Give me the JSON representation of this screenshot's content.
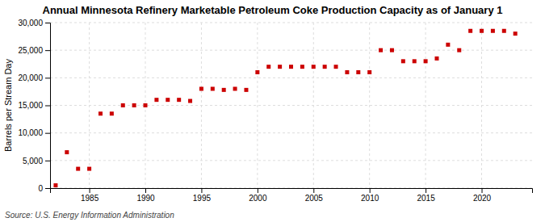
{
  "chart_data": {
    "type": "scatter",
    "title": "Annual Minnesota Refinery Marketable Petroleum Coke Production Capacity as of January 1",
    "ylabel": "Barrels per Stream Day",
    "source": "Source: U.S. Energy Information Administration",
    "x": [
      1982,
      1983,
      1984,
      1985,
      1986,
      1987,
      1988,
      1989,
      1990,
      1991,
      1992,
      1993,
      1994,
      1995,
      1996,
      1997,
      1998,
      1999,
      2000,
      2001,
      2002,
      2003,
      2004,
      2005,
      2006,
      2007,
      2008,
      2009,
      2010,
      2011,
      2012,
      2013,
      2014,
      2015,
      2016,
      2017,
      2018,
      2019,
      2020,
      2021,
      2022,
      2023
    ],
    "values": [
      500,
      6500,
      3500,
      3500,
      13500,
      13500,
      15000,
      15000,
      15000,
      16000,
      16000,
      16000,
      15800,
      18000,
      18000,
      17800,
      18000,
      17800,
      21000,
      22000,
      22000,
      22000,
      22000,
      22000,
      22000,
      22000,
      21000,
      21000,
      21000,
      25000,
      25000,
      23000,
      23000,
      23000,
      23500,
      26000,
      25000,
      28500,
      28500,
      28500,
      28500,
      28000
    ],
    "color": "#cc0000",
    "marker": "square",
    "xlim": [
      1981.5,
      2024.5
    ],
    "xticks": [
      1985,
      1990,
      1995,
      2000,
      2005,
      2010,
      2015,
      2020
    ],
    "ylim": [
      0,
      30000
    ],
    "yticks": [
      0,
      {
        "value": 5000,
        "label": "5,000"
      },
      {
        "value": 10000,
        "label": "10,000"
      },
      {
        "value": 15000,
        "label": "15,000"
      },
      {
        "value": 20000,
        "label": "20,000"
      },
      {
        "value": 25000,
        "label": "25,000"
      },
      {
        "value": 30000,
        "label": "30,000"
      }
    ],
    "grid": true
  }
}
